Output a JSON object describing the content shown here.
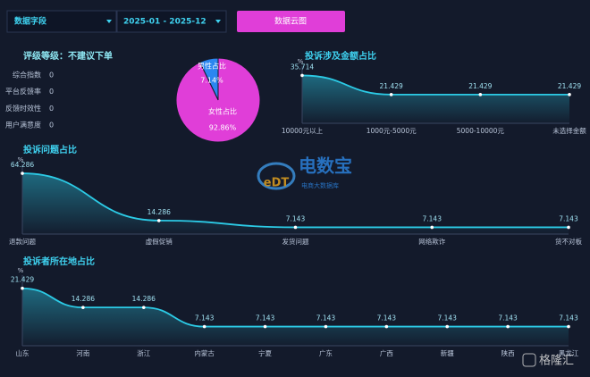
{
  "controls": {
    "field": "数据字段",
    "date_range": "2025-01 - 2025-12",
    "button": "数据云图"
  },
  "rating": {
    "title": "评级等级：不建议下单",
    "items": [
      {
        "label": "综合指数",
        "value": 0
      },
      {
        "label": "平台反馈率",
        "value": 0
      },
      {
        "label": "反馈时效性",
        "value": 0
      },
      {
        "label": "用户满意度",
        "value": 0
      }
    ]
  },
  "chart_data": [
    {
      "type": "pie",
      "categories": [
        "男性占比",
        "女性占比"
      ],
      "values": [
        7.14,
        92.86
      ],
      "value_labels": [
        "7.14%",
        "92.86%"
      ],
      "colors": [
        "#2b86f0",
        "#e03ed8"
      ]
    },
    {
      "type": "line",
      "title": "投诉涉及金额占比",
      "y_unit": "%",
      "categories": [
        "10000元以上",
        "1000元-5000元",
        "5000-10000元",
        "未选择金额"
      ],
      "values": [
        35.714,
        21.429,
        21.429,
        21.429
      ],
      "color": "#2ccbe6",
      "ylim": [
        0,
        40
      ]
    },
    {
      "type": "line",
      "title": "投诉问题占比",
      "y_unit": "%",
      "categories": [
        "退款问题",
        "虚假促销",
        "发货问题",
        "网络欺诈",
        "货不对板"
      ],
      "values": [
        64.286,
        14.286,
        7.143,
        7.143,
        7.143
      ],
      "color": "#2ccbe6",
      "ylim": [
        0,
        70
      ]
    },
    {
      "type": "line",
      "title": "投诉者所在地占比",
      "y_unit": "%",
      "categories": [
        "山东",
        "河南",
        "浙江",
        "内蒙古",
        "宁夏",
        "广东",
        "广西",
        "新疆",
        "陕西",
        "黑龙江"
      ],
      "values": [
        21.429,
        14.286,
        14.286,
        7.143,
        7.143,
        7.143,
        7.143,
        7.143,
        7.143,
        7.143
      ],
      "color": "#2ccbe6",
      "ylim": [
        0,
        25
      ]
    }
  ],
  "watermark": {
    "logo": "eDT",
    "name": "电数宝",
    "tagline": "电商大数据库",
    "corner": "格隆汇"
  }
}
